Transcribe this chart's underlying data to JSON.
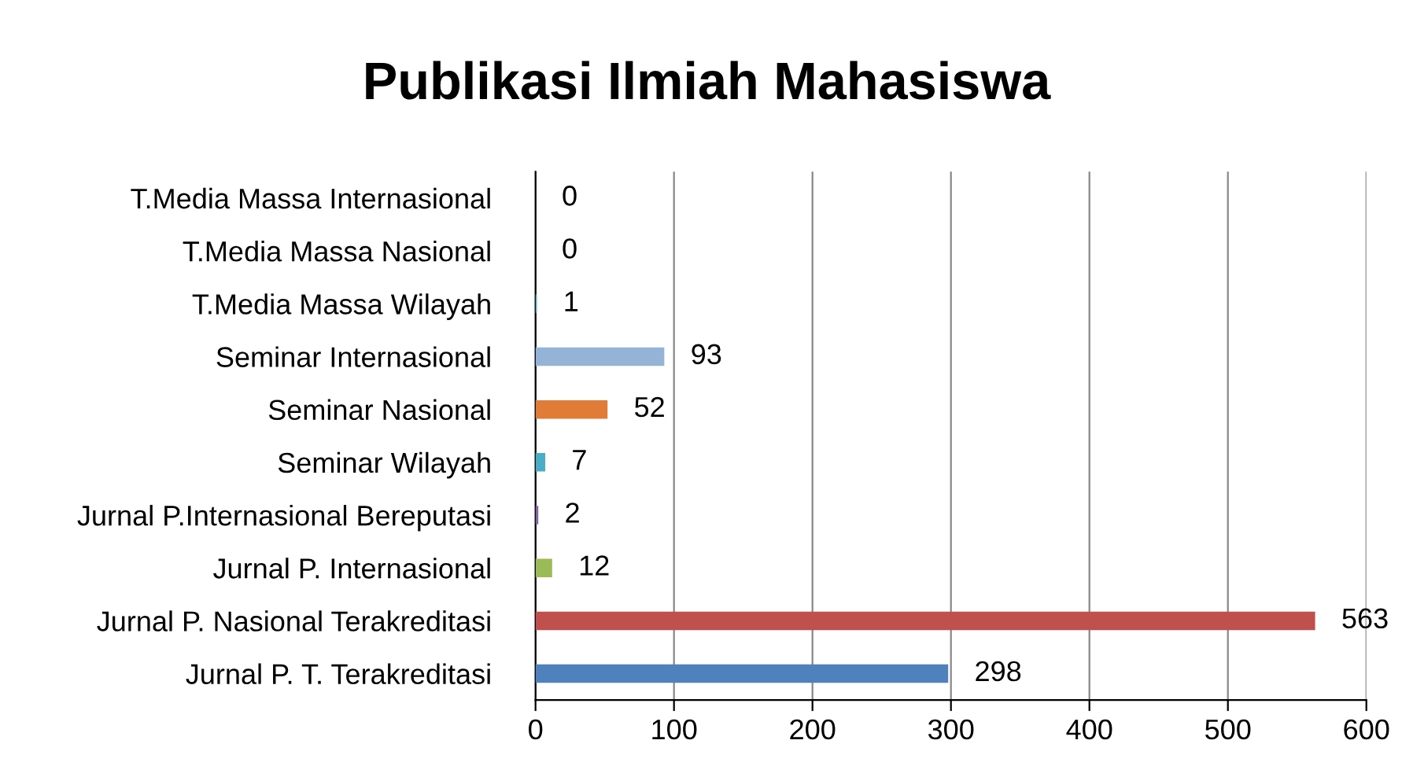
{
  "chart_data": {
    "type": "bar",
    "orientation": "horizontal",
    "title": "Publikasi Ilmiah Mahasiswa",
    "categories": [
      "T.Media Massa Internasional",
      "T.Media Massa Nasional",
      "T.Media Massa Wilayah",
      "Seminar Internasional",
      "Seminar Nasional",
      "Seminar Wilayah",
      "Jurnal P.Internasional Bereputasi",
      "Jurnal P. Internasional",
      "Jurnal P. Nasional Terakreditasi",
      "Jurnal P. T. Terakreditasi"
    ],
    "values": [
      0,
      0,
      1,
      93,
      52,
      7,
      2,
      12,
      563,
      298
    ],
    "colors": [
      "#4bacc6",
      "#f79646",
      "#4bacc6",
      "#95b3d7",
      "#e07c35",
      "#4bacc6",
      "#8064a2",
      "#9bbb59",
      "#c0504d",
      "#4f81bd"
    ],
    "xlim": [
      0,
      600
    ],
    "xticks": [
      0,
      100,
      200,
      300,
      400,
      500,
      600
    ],
    "grid": "x",
    "data_labels": true,
    "legend": false
  }
}
